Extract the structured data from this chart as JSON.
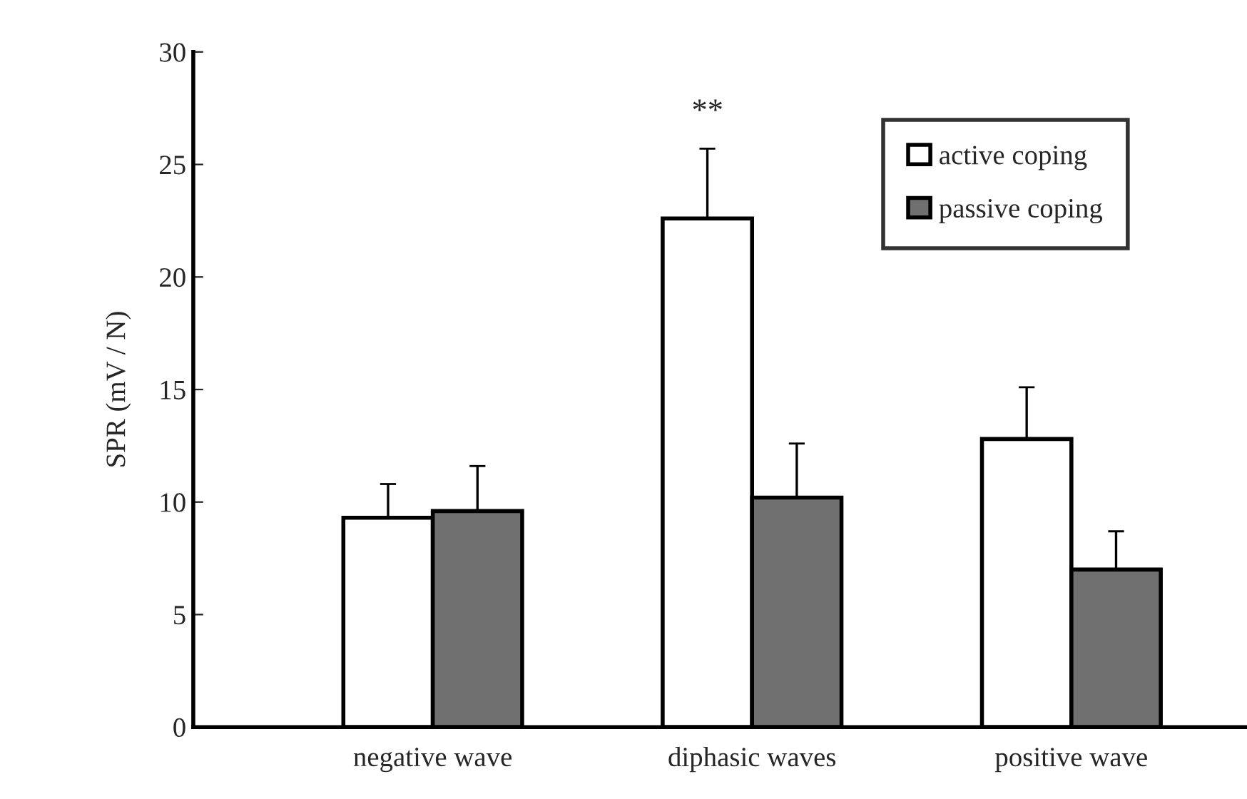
{
  "chart_data": {
    "type": "bar",
    "ylabel": "SPR (mV / N)",
    "categories": [
      "negative wave",
      "diphasic waves",
      "positive wave"
    ],
    "series": [
      {
        "name": "active coping",
        "color": "#ffffff",
        "values": [
          9.3,
          22.6,
          12.8
        ],
        "errors": [
          [
            9.3,
            10.8
          ],
          [
            22.6,
            25.7
          ],
          [
            12.8,
            15.1
          ]
        ]
      },
      {
        "name": "passive coping",
        "color": "#707070",
        "values": [
          9.6,
          10.2,
          7.0
        ],
        "errors": [
          [
            9.6,
            11.6
          ],
          [
            10.2,
            12.6
          ],
          [
            7.0,
            8.7
          ]
        ]
      }
    ],
    "annotations": [
      "**"
    ],
    "ylim": [
      0,
      30
    ],
    "yticks": [
      0,
      5,
      10,
      15,
      20,
      25,
      30
    ],
    "grid": false,
    "legend": "top right"
  }
}
